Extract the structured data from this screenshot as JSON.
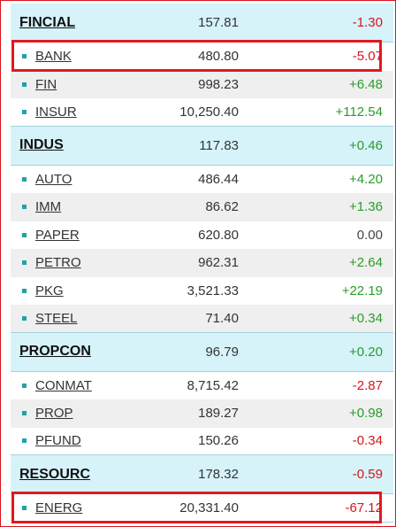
{
  "colors": {
    "accent_red": "#e0191f",
    "header_bg": "#d6f3fa",
    "positive": "#2a9c2a",
    "negative": "#d8141c",
    "bullet": "#1fa3a8"
  },
  "groups": [
    {
      "name": "FINCIAL",
      "price": "157.81",
      "change": "-1.30",
      "dir": "neg",
      "items": [
        {
          "name": "BANK",
          "price": "480.80",
          "change": "-5.07",
          "dir": "neg",
          "highlighted": true
        },
        {
          "name": "FIN",
          "price": "998.23",
          "change": "+6.48",
          "dir": "pos"
        },
        {
          "name": "INSUR",
          "price": "10,250.40",
          "change": "+112.54",
          "dir": "pos"
        }
      ]
    },
    {
      "name": "INDUS",
      "price": "117.83",
      "change": "+0.46",
      "dir": "pos",
      "items": [
        {
          "name": "AUTO",
          "price": "486.44",
          "change": "+4.20",
          "dir": "pos"
        },
        {
          "name": "IMM",
          "price": "86.62",
          "change": "+1.36",
          "dir": "pos"
        },
        {
          "name": "PAPER",
          "price": "620.80",
          "change": "0.00",
          "dir": "zero"
        },
        {
          "name": "PETRO",
          "price": "962.31",
          "change": "+2.64",
          "dir": "pos"
        },
        {
          "name": "PKG",
          "price": "3,521.33",
          "change": "+22.19",
          "dir": "pos"
        },
        {
          "name": "STEEL",
          "price": "71.40",
          "change": "+0.34",
          "dir": "pos"
        }
      ]
    },
    {
      "name": "PROPCON",
      "price": "96.79",
      "change": "+0.20",
      "dir": "pos",
      "items": [
        {
          "name": "CONMAT",
          "price": "8,715.42",
          "change": "-2.87",
          "dir": "neg"
        },
        {
          "name": "PROP",
          "price": "189.27",
          "change": "+0.98",
          "dir": "pos"
        },
        {
          "name": "PFUND",
          "price": "150.26",
          "change": "-0.34",
          "dir": "neg"
        }
      ]
    },
    {
      "name": "RESOURC",
      "price": "178.32",
      "change": "-0.59",
      "dir": "neg",
      "items": [
        {
          "name": "ENERG",
          "price": "20,331.40",
          "change": "-67.12",
          "dir": "neg",
          "highlighted": true
        }
      ]
    }
  ]
}
